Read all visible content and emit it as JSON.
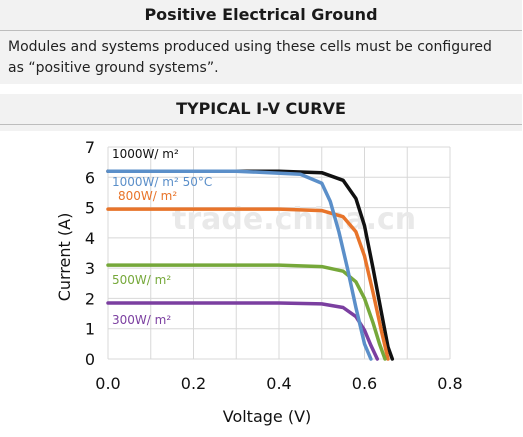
{
  "header": {
    "title": "Positive Electrical Ground",
    "text": "Modules and systems produced using these cells must be configured as “positive ground systems”."
  },
  "chart_section": {
    "title": "TYPICAL I-V CURVE"
  },
  "watermark": "trade.china.cn",
  "chart_data": {
    "type": "line",
    "xlabel": "Voltage (V)",
    "ylabel": "Current (A)",
    "xlim": [
      0,
      0.8
    ],
    "ylim": [
      0,
      7
    ],
    "xticks": [
      "0.0",
      "0.2",
      "0.4",
      "0.6",
      "0.8"
    ],
    "yticks": [
      "0",
      "1",
      "2",
      "3",
      "4",
      "5",
      "6",
      "7"
    ],
    "grid": true,
    "series": [
      {
        "name": "1000W/ m²",
        "color": "#111111",
        "x": [
          0,
          0.4,
          0.5,
          0.55,
          0.58,
          0.6,
          0.62,
          0.64,
          0.655,
          0.665
        ],
        "y": [
          6.2,
          6.2,
          6.15,
          5.9,
          5.3,
          4.4,
          3.0,
          1.5,
          0.4,
          0
        ]
      },
      {
        "name": "1000W/ m² 50°C",
        "color": "#5b8fc9",
        "x": [
          0,
          0.3,
          0.45,
          0.5,
          0.52,
          0.54,
          0.56,
          0.58,
          0.6,
          0.615
        ],
        "y": [
          6.2,
          6.2,
          6.1,
          5.8,
          5.2,
          4.2,
          3.0,
          1.7,
          0.5,
          0
        ]
      },
      {
        "name": "800W/ m²",
        "color": "#e8742a",
        "x": [
          0,
          0.4,
          0.5,
          0.55,
          0.58,
          0.6,
          0.62,
          0.64,
          0.655
        ],
        "y": [
          4.95,
          4.95,
          4.9,
          4.7,
          4.2,
          3.4,
          2.2,
          0.9,
          0
        ]
      },
      {
        "name": "500W/ m²",
        "color": "#76a83a",
        "x": [
          0,
          0.4,
          0.5,
          0.55,
          0.58,
          0.6,
          0.62,
          0.635,
          0.648
        ],
        "y": [
          3.1,
          3.1,
          3.05,
          2.9,
          2.55,
          2.0,
          1.2,
          0.5,
          0
        ]
      },
      {
        "name": "300W/ m²",
        "color": "#7b3fa0",
        "x": [
          0,
          0.4,
          0.5,
          0.55,
          0.58,
          0.6,
          0.615,
          0.63
        ],
        "y": [
          1.85,
          1.85,
          1.82,
          1.7,
          1.4,
          0.95,
          0.45,
          0
        ]
      }
    ]
  }
}
